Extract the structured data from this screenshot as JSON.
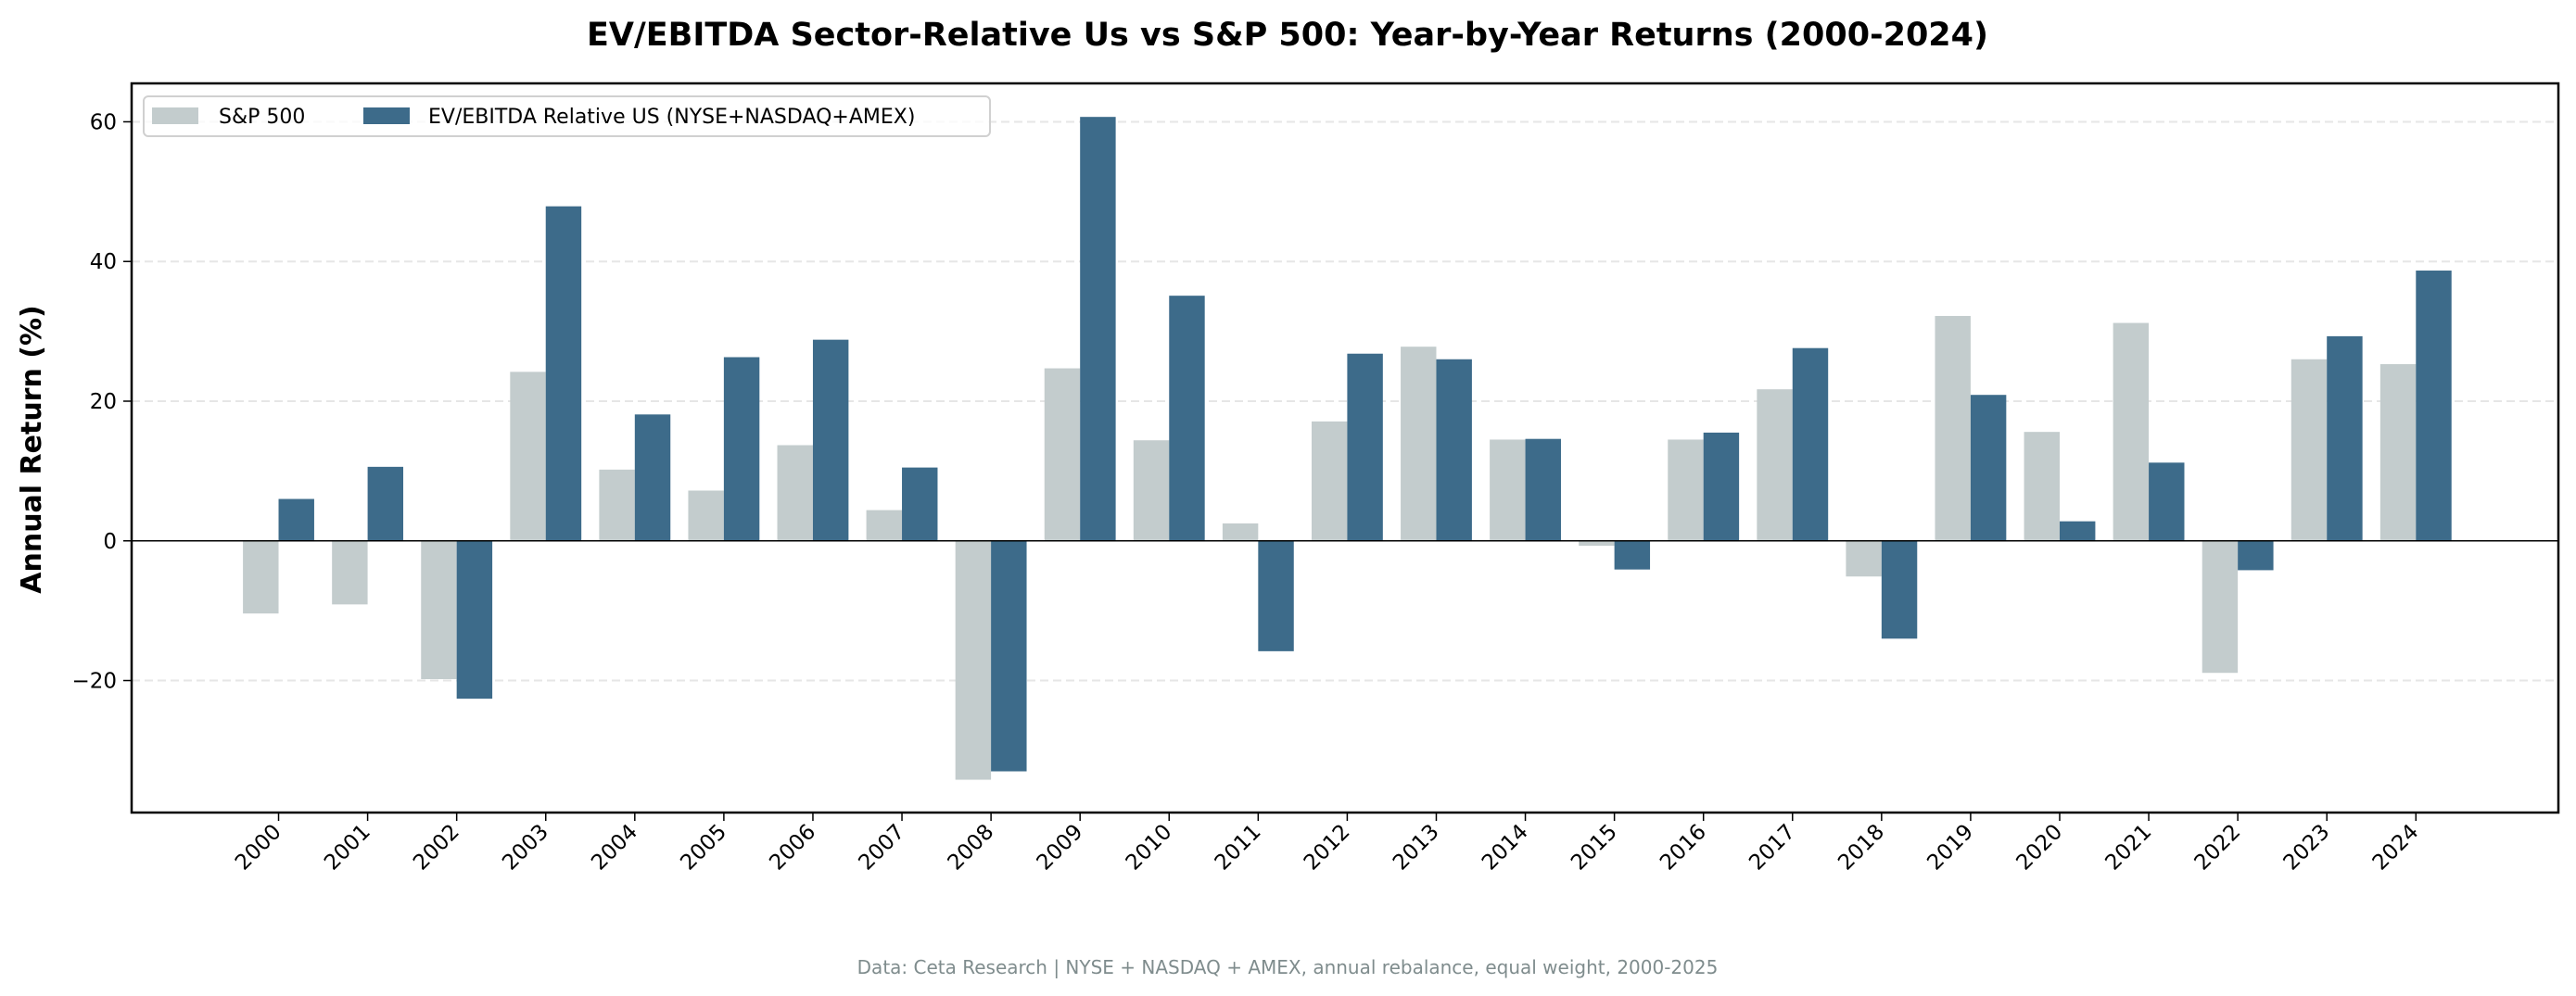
{
  "chart_data": {
    "type": "bar",
    "title": "EV/EBITDA Sector-Relative Us vs S&P 500: Year-by-Year Returns (2000-2024)",
    "xlabel": "",
    "ylabel": "Annual Return (%)",
    "ylim": [
      -38.9,
      65.5
    ],
    "yticks": [
      -20,
      0,
      20,
      40,
      60
    ],
    "ytick_labels": [
      "−20",
      "0",
      "20",
      "40",
      "60"
    ],
    "grid": "y dashed",
    "legend_placement": "top-left",
    "categories": [
      "2000",
      "2001",
      "2002",
      "2003",
      "2004",
      "2005",
      "2006",
      "2007",
      "2008",
      "2009",
      "2010",
      "2011",
      "2012",
      "2013",
      "2014",
      "2015",
      "2016",
      "2017",
      "2018",
      "2019",
      "2020",
      "2021",
      "2022",
      "2023",
      "2024"
    ],
    "series": [
      {
        "name": "S&P 500",
        "color": "#c3cccd",
        "values": [
          -10.4,
          -9.1,
          -19.8,
          24.2,
          10.2,
          7.2,
          13.7,
          4.4,
          -34.2,
          24.7,
          14.4,
          2.5,
          17.1,
          27.8,
          14.5,
          -0.7,
          14.5,
          21.7,
          -5.1,
          32.2,
          15.6,
          31.2,
          -18.9,
          26.0,
          25.3
        ]
      },
      {
        "name": "EV/EBITDA Relative US (NYSE+NASDAQ+AMEX)",
        "color": "#3d6b8a",
        "values": [
          6.0,
          10.6,
          -22.6,
          47.9,
          18.1,
          26.3,
          28.8,
          10.5,
          -33.0,
          60.7,
          35.1,
          -15.8,
          26.8,
          26.0,
          14.6,
          -4.1,
          15.5,
          27.6,
          -14.0,
          20.9,
          2.8,
          11.2,
          -4.2,
          29.3,
          38.7
        ]
      }
    ],
    "footnote": "Data: Ceta Research | NYSE + NASDAQ + AMEX, annual rebalance, equal weight, 2000-2025"
  }
}
